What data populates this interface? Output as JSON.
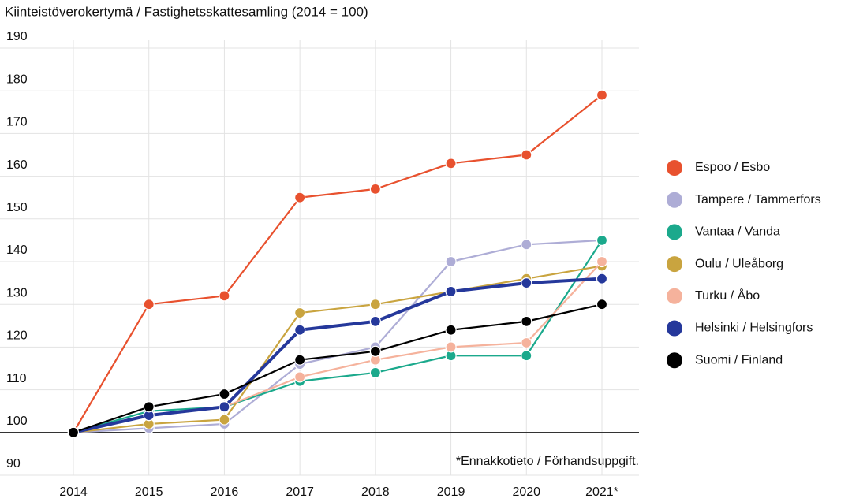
{
  "chart_data": {
    "type": "line",
    "title": "Kiinteistöverokertymä / Fastighetsskattesamling (2014 = 100)",
    "annotation": "*Ennakkotieto / Förhandsuppgift.",
    "categories": [
      "2014",
      "2015",
      "2016",
      "2017",
      "2018",
      "2019",
      "2020",
      "2021*"
    ],
    "series": [
      {
        "name": "Espoo / Esbo",
        "color": "#e8512e",
        "values": [
          100,
          130,
          132,
          155,
          157,
          163,
          165,
          179
        ]
      },
      {
        "name": "Tampere / Tammerfors",
        "color": "#aeadd6",
        "values": [
          100,
          101,
          102,
          116,
          120,
          140,
          144,
          145
        ]
      },
      {
        "name": "Vantaa / Vanda",
        "color": "#1ba98c",
        "values": [
          100,
          105,
          106,
          112,
          114,
          118,
          118,
          145
        ]
      },
      {
        "name": "Oulu / Uleåborg",
        "color": "#c9a43f",
        "values": [
          100,
          102,
          103,
          128,
          130,
          133,
          136,
          139
        ]
      },
      {
        "name": "Turku / Åbo",
        "color": "#f5b29c",
        "values": [
          100,
          104,
          106,
          113,
          117,
          120,
          121,
          140
        ]
      },
      {
        "name": "Helsinki / Helsingfors",
        "color": "#25389b",
        "values": [
          100,
          104,
          106,
          124,
          126,
          133,
          135,
          136
        ]
      },
      {
        "name": "Suomi / Finland",
        "color": "#000000",
        "values": [
          100,
          106,
          109,
          117,
          119,
          124,
          126,
          130
        ]
      }
    ],
    "ylim": [
      90,
      190
    ],
    "yticks": [
      90,
      100,
      110,
      120,
      130,
      140,
      150,
      160,
      170,
      180,
      190
    ],
    "baseline": 100,
    "grid": true,
    "legend": "right"
  }
}
